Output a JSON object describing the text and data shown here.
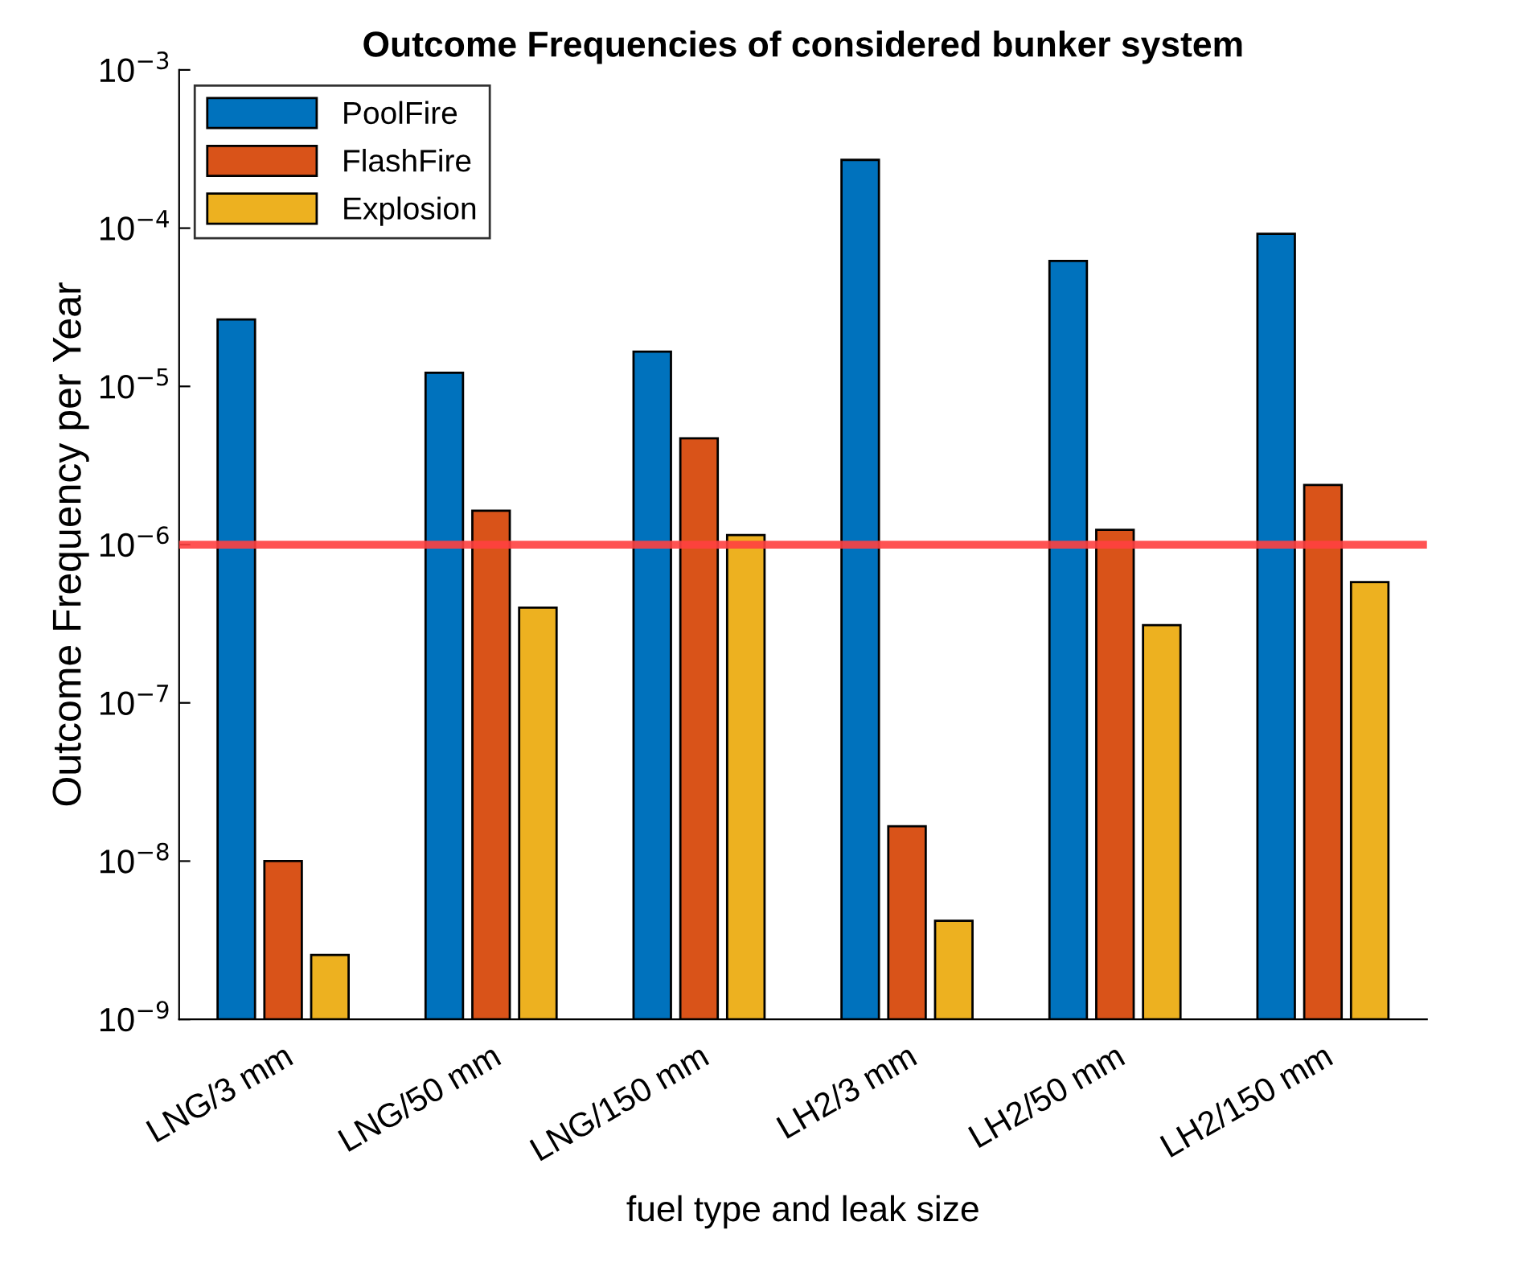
{
  "chart_data": {
    "type": "bar",
    "title": "Outcome Frequencies of considered bunker system",
    "xlabel": "fuel type and leak size",
    "ylabel": "Outcome Frequency per Year",
    "categories": [
      "LNG/3 mm",
      "LNG/50 mm",
      "LNG/150 mm",
      "LH2/3 mm",
      "LH2/50 mm",
      "LH2/150 mm"
    ],
    "series": [
      {
        "name": "PoolFire",
        "color": "#0072bd",
        "values": [
          2.65e-05,
          1.22e-05,
          1.66e-05,
          0.00027,
          6.2e-05,
          9.2e-05
        ]
      },
      {
        "name": "FlashFire",
        "color": "#d95319",
        "values": [
          1e-08,
          1.64e-06,
          4.7e-06,
          1.66e-08,
          1.24e-06,
          2.38e-06
        ]
      },
      {
        "name": "Explosion",
        "color": "#edb120",
        "values": [
          2.55e-09,
          4e-07,
          1.15e-06,
          4.2e-09,
          3.1e-07,
          5.8e-07
        ]
      }
    ],
    "log": "y",
    "ylim": [
      1e-09,
      0.001
    ],
    "yticks": [
      {
        "value": 1e-09,
        "label": "10$^{−9}$"
      },
      {
        "value": 1e-08,
        "label": "10$^{−8}$"
      },
      {
        "value": 1e-07,
        "label": "10$^{−7}$"
      },
      {
        "value": 1e-06,
        "label": "10$^{−6}$"
      },
      {
        "value": 1e-05,
        "label": "10$^{−5}$"
      },
      {
        "value": 0.0001,
        "label": "10$^{−4}$"
      },
      {
        "value": 0.001,
        "label": "10$^{−3}$"
      }
    ],
    "ref_lines": [
      {
        "axis": "y",
        "value": 1e-06,
        "color": "#ff4040"
      }
    ],
    "legend": "top left",
    "grid": false
  }
}
